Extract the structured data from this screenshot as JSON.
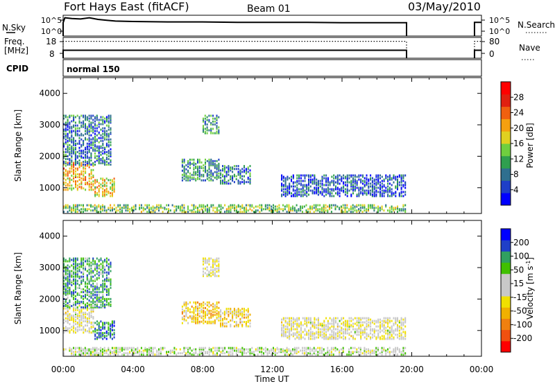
{
  "header": {
    "title": "Fort Hays East (fitACF)",
    "beam": "Beam 01",
    "date": "03/May/2010"
  },
  "status": {
    "nsky_label": "N.Sky",
    "nsky_top": "10^5",
    "nsky_bottom": "10^0",
    "nsearch_label": "N.Search",
    "nsearch_top": "10^5",
    "nsearch_bottom": "10^0",
    "freq_label_1": "Freq.",
    "freq_label_2": "[MHz]",
    "freq_top": "18",
    "freq_bottom": "8",
    "nave_label": "Nave",
    "nave_top": "80",
    "nave_bottom": "0",
    "cpid_label": "CPID",
    "cpid_value": "normal 150"
  },
  "chart_data": [
    {
      "type": "line",
      "panel": "N.Sky / N.Search",
      "series": [
        {
          "name": "N.Sky",
          "style": "solid",
          "x": [
            0.0,
            0.1,
            0.5,
            1.0,
            1.5,
            2.0,
            2.5,
            3.0,
            4.0,
            6.0,
            8.0,
            10.0,
            12.0,
            14.0,
            16.0,
            18.0,
            19.7
          ],
          "values": [
            3.2,
            4.4,
            4.2,
            4.1,
            4.4,
            4.0,
            3.8,
            3.6,
            3.5,
            3.4,
            3.4,
            3.3,
            3.3,
            3.3,
            3.2,
            3.2,
            3.2
          ]
        },
        {
          "name": "N.Search",
          "style": "dotted",
          "x": [],
          "values": []
        }
      ],
      "xlim": [
        0,
        24
      ],
      "ylim": [
        0,
        5
      ]
    },
    {
      "type": "line",
      "panel": "Freq. / Nave",
      "series": [
        {
          "name": "Freq.",
          "style": "solid",
          "x": [
            0.0,
            19.7
          ],
          "values": [
            10.5,
            10.5
          ]
        },
        {
          "name": "Nave",
          "style": "dotted",
          "x": [
            0.0,
            19.7
          ],
          "values": [
            65,
            65
          ]
        }
      ],
      "xlim": [
        0,
        24
      ],
      "ylim": [
        8,
        18
      ],
      "y2lim": [
        0,
        80
      ]
    },
    {
      "type": "heatmap",
      "title": "Power",
      "ylabel": "Slant Range [km]",
      "colorbar_label": "Power [dB]",
      "colorbar_ticks": [
        "4",
        "8",
        "12",
        "16",
        "20",
        "24",
        "28"
      ],
      "xticks": [
        "00:00",
        "04:00",
        "08:00",
        "12:00",
        "16:00",
        "20:00",
        "00:00"
      ],
      "yticks": [
        "1000",
        "2000",
        "3000",
        "4000"
      ],
      "xlim": [
        0,
        24
      ],
      "ylim": [
        180,
        4500
      ],
      "clim": [
        0,
        32
      ],
      "regions": [
        {
          "x": [
            0.0,
            1.8
          ],
          "y": [
            900,
            1800
          ],
          "value": 20
        },
        {
          "x": [
            1.8,
            3.0
          ],
          "y": [
            700,
            1300
          ],
          "value": 18
        },
        {
          "x": [
            0.0,
            2.8
          ],
          "y": [
            1700,
            3300
          ],
          "value": 8
        },
        {
          "x": [
            6.8,
            9.0
          ],
          "y": [
            1200,
            1900
          ],
          "value": 10
        },
        {
          "x": [
            9.0,
            10.8
          ],
          "y": [
            1100,
            1700
          ],
          "value": 8
        },
        {
          "x": [
            12.5,
            19.7
          ],
          "y": [
            700,
            1400
          ],
          "value": 6
        },
        {
          "x": [
            0.0,
            19.7
          ],
          "y": [
            200,
            450
          ],
          "value": 14
        },
        {
          "x": [
            8.0,
            9.0
          ],
          "y": [
            2700,
            3300
          ],
          "value": 10
        }
      ]
    },
    {
      "type": "heatmap",
      "title": "Velocity",
      "ylabel": "Slant Range [km]",
      "xlabel": "Time UT",
      "colorbar_label": "Velocity [m s^-1]",
      "colorbar_ticks": [
        "-200",
        "-100",
        "-50",
        "-15",
        "15",
        "50",
        "100",
        "200"
      ],
      "xticks": [
        "00:00",
        "04:00",
        "08:00",
        "12:00",
        "16:00",
        "20:00",
        "00:00"
      ],
      "yticks": [
        "1000",
        "2000",
        "3000",
        "4000"
      ],
      "xlim": [
        0,
        24
      ],
      "ylim": [
        180,
        4500
      ],
      "clim": [
        -250,
        250
      ],
      "regions": [
        {
          "x": [
            0.0,
            1.8
          ],
          "y": [
            900,
            1800
          ],
          "value": 0
        },
        {
          "x": [
            1.8,
            3.0
          ],
          "y": [
            700,
            1300
          ],
          "value": 150
        },
        {
          "x": [
            0.0,
            2.8
          ],
          "y": [
            1700,
            3300
          ],
          "value": 120
        },
        {
          "x": [
            6.8,
            9.0
          ],
          "y": [
            1200,
            1900
          ],
          "value": -60
        },
        {
          "x": [
            9.0,
            10.8
          ],
          "y": [
            1100,
            1700
          ],
          "value": -50
        },
        {
          "x": [
            12.5,
            19.7
          ],
          "y": [
            700,
            1400
          ],
          "value": 0
        },
        {
          "x": [
            0.0,
            19.7
          ],
          "y": [
            200,
            450
          ],
          "value": 30
        },
        {
          "x": [
            8.0,
            9.0
          ],
          "y": [
            2700,
            3300
          ],
          "value": 0
        }
      ]
    }
  ]
}
